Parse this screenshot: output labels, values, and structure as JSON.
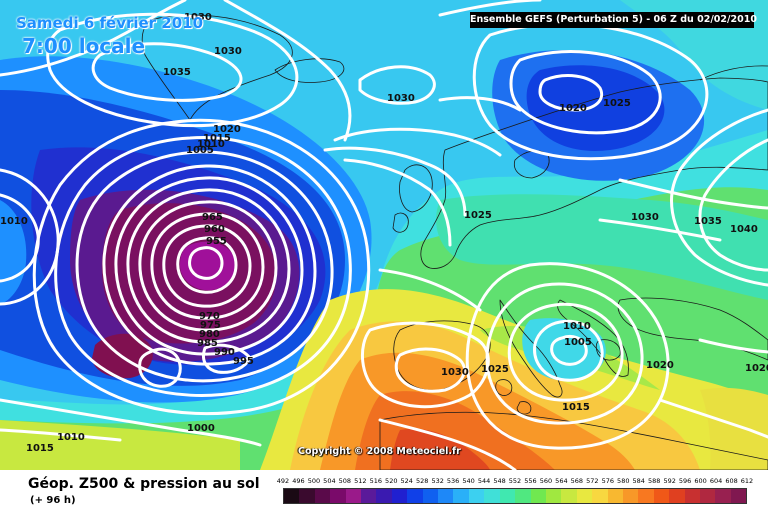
{
  "header": {
    "date_title": "Samedi 6 février 2010",
    "time_title": "7:00 locale",
    "model_info": "Ensemble GEFS (Perturbation 5)  - 06 Z du 02/02/2010"
  },
  "copyright": "Copyright © 2008 Meteociel.fr",
  "footer": {
    "param_title": "Géop. Z500 & pression au sol",
    "lead_time": "(+ 96 h)"
  },
  "color_scale": {
    "labels": [
      "492",
      "496",
      "500",
      "504",
      "508",
      "512",
      "516",
      "520",
      "524",
      "528",
      "532",
      "536",
      "540",
      "544",
      "548",
      "552",
      "556",
      "560",
      "564",
      "568",
      "572",
      "576",
      "580",
      "584",
      "588",
      "592",
      "596",
      "600",
      "604",
      "608",
      "612"
    ],
    "colors": [
      "#1a0a14",
      "#3a0a2e",
      "#5a0a4a",
      "#7a0a6a",
      "#9a1a8a",
      "#5a1a9a",
      "#3a1ab0",
      "#2020d0",
      "#1040e8",
      "#1060f0",
      "#1e88f8",
      "#2ab0f8",
      "#3cd0f0",
      "#40e0d8",
      "#40e8b0",
      "#50e880",
      "#70e850",
      "#a0e840",
      "#c8e840",
      "#e8e840",
      "#f8d840",
      "#f8b830",
      "#f89828",
      "#f87820",
      "#f05818",
      "#e04020",
      "#c83030",
      "#b02840",
      "#982050",
      "#801850"
    ]
  },
  "pressure_labels": [
    "1030",
    "1030",
    "1035",
    "1030",
    "1020",
    "1025",
    "1020",
    "1015",
    "1010",
    "1005",
    "1025",
    "1030",
    "1035",
    "1040",
    "965",
    "960",
    "955",
    "970",
    "975",
    "980",
    "985",
    "990",
    "995",
    "1030",
    "1025",
    "1010",
    "1005",
    "1020",
    "1015",
    "1010",
    "1000",
    "1015",
    "1010"
  ],
  "centers": {
    "low_atlantic": "955",
    "low_mediterranean": "1005",
    "high_north": "1020"
  }
}
